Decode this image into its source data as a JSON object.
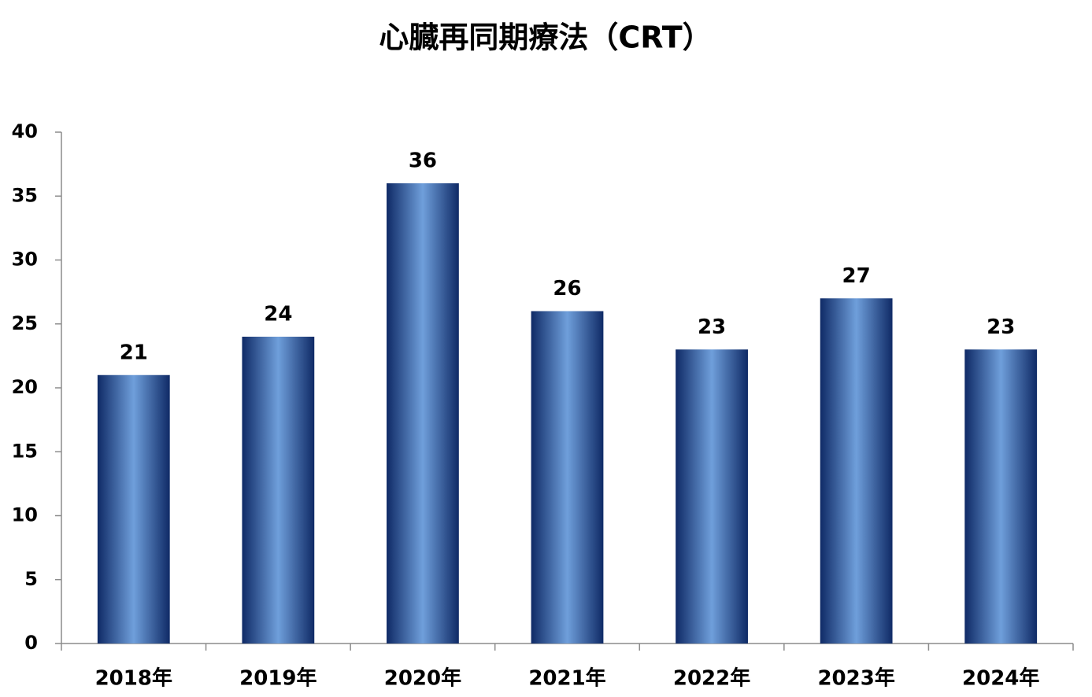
{
  "chart_data": {
    "type": "bar",
    "title": "心臓再同期療法（CRT）",
    "categories": [
      "2018年",
      "2019年",
      "2020年",
      "2021年",
      "2022年",
      "2023年",
      "2024年"
    ],
    "values": [
      21,
      24,
      36,
      26,
      23,
      27,
      23
    ],
    "color": "#6f9fdb",
    "ylim": [
      0,
      40
    ],
    "yticks": [
      0,
      5,
      10,
      15,
      20,
      25,
      30,
      35,
      40
    ],
    "grid": false
  }
}
